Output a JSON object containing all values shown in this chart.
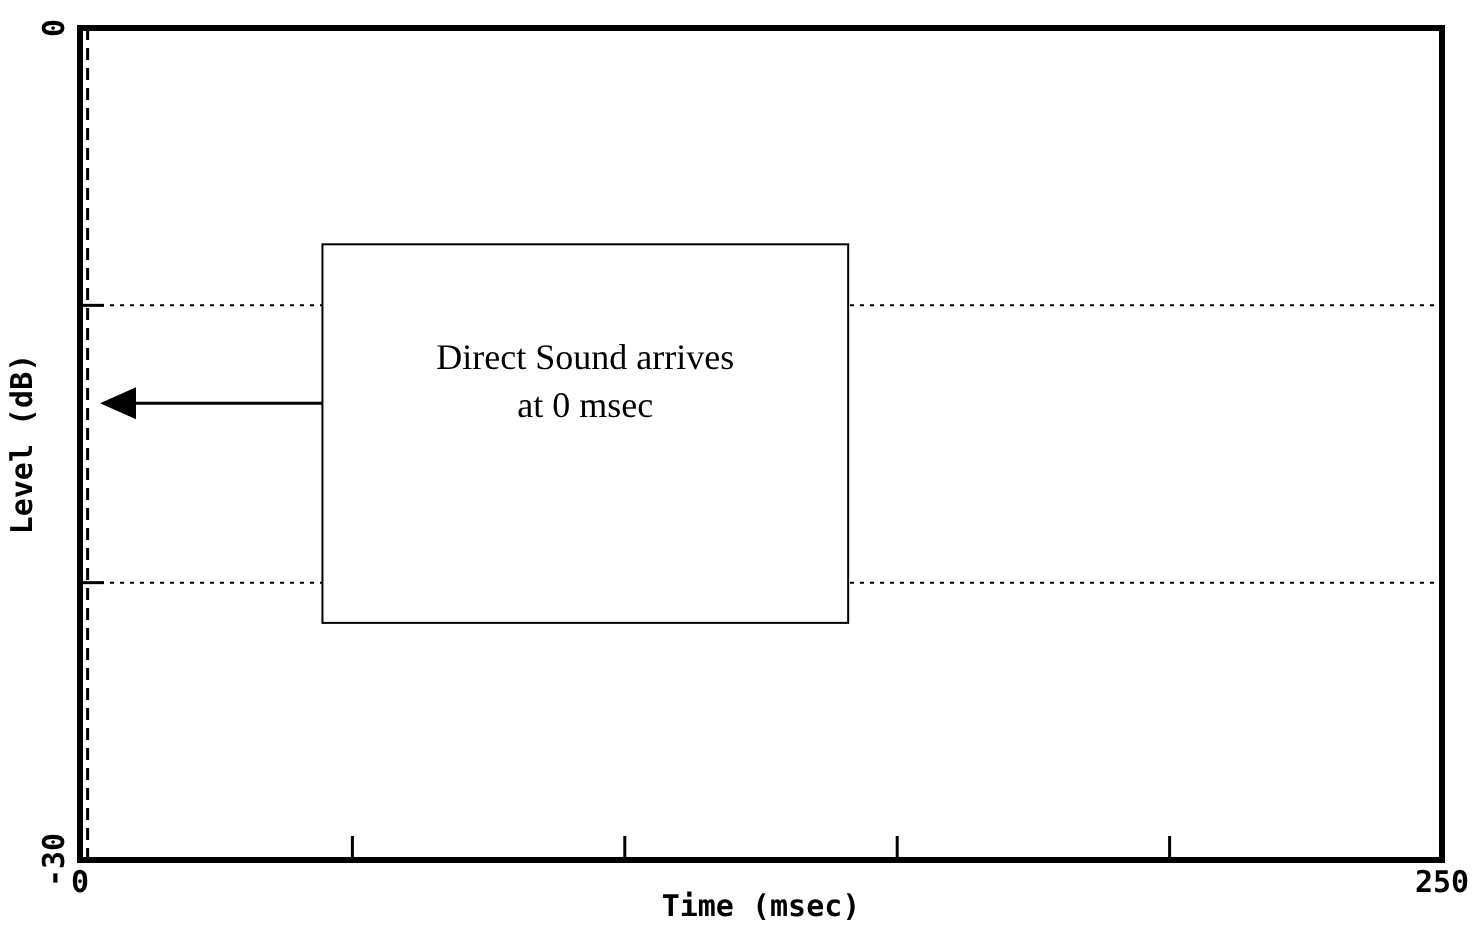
{
  "chart_data": {
    "type": "line",
    "xlabel": "Time (msec)",
    "ylabel": "Level (dB)",
    "xlim": [
      0,
      250
    ],
    "ylim": [
      -30,
      0
    ],
    "xticks": [
      0,
      {
        "value": 50,
        "label": null
      },
      {
        "value": 100,
        "label": null
      },
      {
        "value": 150,
        "label": null
      },
      {
        "value": 200,
        "label": null
      },
      250
    ],
    "yticks": [
      -30,
      {
        "value": -20,
        "label": null
      },
      {
        "value": -10,
        "label": null
      },
      0
    ],
    "grid": "y",
    "ref_lines": [
      {
        "axis": "x",
        "value": 1.4,
        "line_style": "dashed",
        "color": "#000000"
      }
    ],
    "annotations": [
      "Direct Sound arrives\nat 0 msec"
    ]
  }
}
